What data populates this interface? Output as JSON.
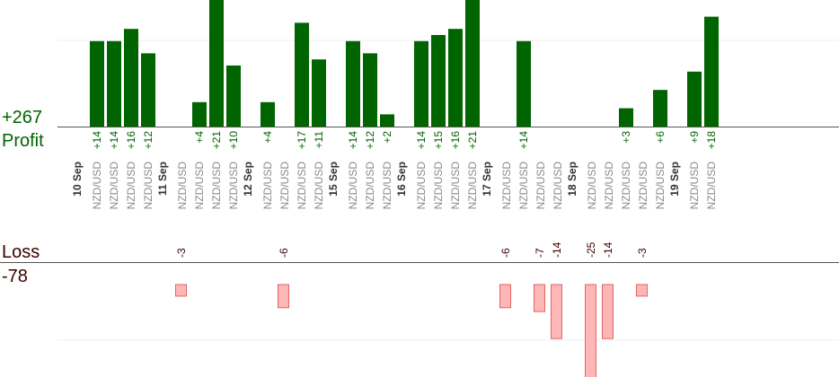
{
  "profit_label": "Profit",
  "loss_label": "Loss",
  "profit_total": "+267",
  "loss_total": "-78",
  "colors": {
    "profit_bar": "#006400",
    "loss_fill": "#ffb6b6",
    "loss_stroke": "#e06666",
    "profit_text": "#006400",
    "loss_text": "#3a0000",
    "date_text": "#333333",
    "pair_text": "#8a8a8a"
  },
  "chart_data": {
    "type": "bar",
    "pair": "NZD/USD",
    "dates": [
      "10 Sep",
      "11 Sep",
      "12 Sep",
      "15 Sep",
      "16 Sep",
      "17 Sep",
      "18 Sep",
      "19 Sep"
    ],
    "trades": [
      {
        "date": "10 Sep",
        "value": 14,
        "label": "+14"
      },
      {
        "date": "10 Sep",
        "value": 14,
        "label": "+14"
      },
      {
        "date": "10 Sep",
        "value": 16,
        "label": "+16"
      },
      {
        "date": "10 Sep",
        "value": 12,
        "label": "+12"
      },
      {
        "date": "11 Sep",
        "value": -3,
        "label": "-3"
      },
      {
        "date": "11 Sep",
        "value": 4,
        "label": "+4"
      },
      {
        "date": "11 Sep",
        "value": 21,
        "label": "+21"
      },
      {
        "date": "11 Sep",
        "value": 10,
        "label": "+10"
      },
      {
        "date": "12 Sep",
        "value": 4,
        "label": "+4"
      },
      {
        "date": "12 Sep",
        "value": -6,
        "label": "-6"
      },
      {
        "date": "12 Sep",
        "value": 17,
        "label": "+17"
      },
      {
        "date": "12 Sep",
        "value": 11,
        "label": "+11"
      },
      {
        "date": "15 Sep",
        "value": 14,
        "label": "+14"
      },
      {
        "date": "15 Sep",
        "value": 12,
        "label": "+12"
      },
      {
        "date": "15 Sep",
        "value": 2,
        "label": "+2"
      },
      {
        "date": "16 Sep",
        "value": 14,
        "label": "+14"
      },
      {
        "date": "16 Sep",
        "value": 15,
        "label": "+15"
      },
      {
        "date": "16 Sep",
        "value": 16,
        "label": "+16"
      },
      {
        "date": "16 Sep",
        "value": 21,
        "label": "+21"
      },
      {
        "date": "17 Sep",
        "value": -6,
        "label": "-6"
      },
      {
        "date": "17 Sep",
        "value": 14,
        "label": "+14"
      },
      {
        "date": "17 Sep",
        "value": -7,
        "label": "-7"
      },
      {
        "date": "17 Sep",
        "value": -14,
        "label": "-14"
      },
      {
        "date": "18 Sep",
        "value": -25,
        "label": "-25"
      },
      {
        "date": "18 Sep",
        "value": -14,
        "label": "-14"
      },
      {
        "date": "18 Sep",
        "value": 3,
        "label": "+3"
      },
      {
        "date": "18 Sep",
        "value": -3,
        "label": "-3"
      },
      {
        "date": "18 Sep",
        "value": 6,
        "label": "+6"
      },
      {
        "date": "19 Sep",
        "value": 9,
        "label": "+9"
      },
      {
        "date": "19 Sep",
        "value": 18,
        "label": "+18"
      }
    ]
  }
}
